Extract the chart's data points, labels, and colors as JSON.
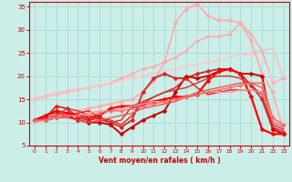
{
  "background_color": "#cceee8",
  "grid_color": "#aadddd",
  "xlim": [
    -0.5,
    23.5
  ],
  "ylim": [
    5,
    36
  ],
  "yticks": [
    5,
    10,
    15,
    20,
    25,
    30,
    35
  ],
  "xticks": [
    0,
    1,
    2,
    3,
    4,
    5,
    6,
    7,
    8,
    9,
    10,
    11,
    12,
    13,
    14,
    15,
    16,
    17,
    18,
    19,
    20,
    21,
    22,
    23
  ],
  "xlabel": "Vent moyen/en rafales ( km/h )",
  "lines": [
    {
      "x": [
        0,
        1,
        2,
        3,
        4,
        5,
        6,
        7,
        8,
        9,
        10,
        11,
        12,
        13,
        14,
        15,
        16,
        17,
        18,
        19,
        20,
        21,
        22,
        23
      ],
      "y": [
        15.2,
        15.8,
        16.3,
        16.8,
        17.2,
        17.5,
        18.0,
        18.5,
        19.0,
        19.5,
        20.0,
        20.5,
        21.0,
        21.5,
        22.0,
        22.5,
        23.0,
        23.5,
        24.0,
        24.5,
        25.0,
        25.5,
        26.0,
        19.5
      ],
      "color": "#ffbbbb",
      "lw": 1.0,
      "marker": null,
      "ms": 0
    },
    {
      "x": [
        0,
        1,
        2,
        3,
        4,
        5,
        6,
        7,
        8,
        9,
        10,
        11,
        12,
        13,
        14,
        15,
        16,
        17,
        18,
        19,
        20,
        21,
        22,
        23
      ],
      "y": [
        15.0,
        15.5,
        16.0,
        16.5,
        17.0,
        17.5,
        18.0,
        18.5,
        19.5,
        20.5,
        21.5,
        22.0,
        23.0,
        24.0,
        25.5,
        27.5,
        28.5,
        28.5,
        29.0,
        31.5,
        29.0,
        25.5,
        18.5,
        19.5
      ],
      "color": "#ffaaaa",
      "lw": 1.2,
      "marker": "D",
      "ms": 2.0
    },
    {
      "x": [
        0,
        1,
        2,
        3,
        4,
        5,
        6,
        7,
        8,
        9,
        10,
        11,
        12,
        13,
        14,
        15,
        16,
        17,
        18,
        19,
        20,
        21,
        22,
        23
      ],
      "y": [
        15.0,
        15.5,
        16.0,
        16.5,
        17.0,
        17.5,
        18.0,
        18.5,
        19.0,
        19.5,
        20.0,
        20.5,
        21.0,
        21.5,
        22.0,
        22.5,
        23.0,
        23.5,
        24.0,
        24.5,
        24.5,
        24.0,
        19.0,
        19.0
      ],
      "color": "#ffcccc",
      "lw": 0.9,
      "marker": null,
      "ms": 0
    },
    {
      "x": [
        0,
        1,
        2,
        3,
        4,
        5,
        6,
        7,
        8,
        9,
        10,
        11,
        12,
        13,
        14,
        15,
        16,
        17,
        18,
        19,
        20,
        21,
        22,
        23
      ],
      "y": [
        10.5,
        11.0,
        11.5,
        12.0,
        12.5,
        13.0,
        13.5,
        14.0,
        14.5,
        15.0,
        16.5,
        19.0,
        23.0,
        31.5,
        34.5,
        35.5,
        33.0,
        32.0,
        32.0,
        31.5,
        27.5,
        20.5,
        16.5,
        8.0
      ],
      "color": "#ffaaaa",
      "lw": 1.2,
      "marker": "D",
      "ms": 2.5
    },
    {
      "x": [
        0,
        1,
        2,
        3,
        4,
        5,
        6,
        7,
        8,
        9,
        10,
        11,
        12,
        13,
        14,
        15,
        16,
        17,
        18,
        19,
        20,
        21,
        22,
        23
      ],
      "y": [
        10.5,
        11.0,
        13.5,
        13.0,
        11.0,
        10.5,
        11.0,
        10.0,
        9.0,
        10.5,
        16.5,
        19.5,
        20.5,
        19.5,
        19.5,
        20.5,
        21.0,
        21.5,
        21.5,
        20.5,
        18.0,
        15.0,
        8.5,
        7.5
      ],
      "color": "#dd2222",
      "lw": 1.3,
      "marker": "D",
      "ms": 2.5
    },
    {
      "x": [
        0,
        1,
        2,
        3,
        4,
        5,
        6,
        7,
        8,
        9,
        10,
        11,
        12,
        13,
        14,
        15,
        16,
        17,
        18,
        19,
        20,
        21,
        22,
        23
      ],
      "y": [
        10.5,
        10.5,
        11.0,
        11.5,
        10.5,
        10.0,
        10.0,
        9.5,
        7.5,
        9.0,
        10.5,
        11.5,
        12.5,
        16.5,
        20.0,
        19.5,
        20.0,
        21.0,
        21.5,
        20.5,
        20.5,
        20.0,
        8.5,
        7.5
      ],
      "color": "#cc0000",
      "lw": 1.4,
      "marker": "D",
      "ms": 2.5
    },
    {
      "x": [
        0,
        1,
        2,
        3,
        4,
        5,
        6,
        7,
        8,
        9,
        10,
        11,
        12,
        13,
        14,
        15,
        16,
        17,
        18,
        19,
        20,
        21,
        22,
        23
      ],
      "y": [
        10.5,
        11.5,
        12.0,
        11.5,
        12.0,
        12.5,
        11.0,
        10.5,
        9.5,
        11.5,
        14.0,
        15.5,
        16.5,
        17.5,
        19.5,
        17.5,
        16.0,
        16.5,
        17.0,
        17.0,
        17.0,
        16.5,
        9.0,
        8.0
      ],
      "color": "#ee2222",
      "lw": 1.1,
      "marker": null,
      "ms": 0
    },
    {
      "x": [
        0,
        1,
        2,
        3,
        4,
        5,
        6,
        7,
        8,
        9,
        10,
        11,
        12,
        13,
        14,
        15,
        16,
        17,
        18,
        19,
        20,
        21,
        22,
        23
      ],
      "y": [
        10.5,
        11.5,
        12.5,
        12.0,
        11.5,
        11.0,
        11.5,
        13.0,
        13.5,
        13.5,
        14.0,
        14.5,
        15.0,
        15.5,
        15.5,
        16.0,
        19.0,
        21.0,
        21.5,
        20.5,
        15.5,
        8.5,
        7.5,
        7.5
      ],
      "color": "#ff0000",
      "lw": 1.6,
      "marker": "D",
      "ms": 2.5
    },
    {
      "x": [
        0,
        1,
        2,
        3,
        4,
        5,
        6,
        7,
        8,
        9,
        10,
        11,
        12,
        13,
        14,
        15,
        16,
        17,
        18,
        19,
        20,
        21,
        22,
        23
      ],
      "y": [
        10.5,
        11.0,
        11.5,
        13.0,
        12.5,
        11.5,
        10.5,
        10.0,
        10.5,
        13.5,
        14.5,
        15.5,
        16.5,
        17.0,
        17.5,
        18.5,
        19.5,
        20.0,
        20.0,
        19.5,
        18.0,
        16.0,
        9.5,
        8.5
      ],
      "color": "#cc3333",
      "lw": 1.0,
      "marker": null,
      "ms": 0
    },
    {
      "x": [
        0,
        1,
        2,
        3,
        4,
        5,
        6,
        7,
        8,
        9,
        10,
        11,
        12,
        13,
        14,
        15,
        16,
        17,
        18,
        19,
        20,
        21,
        22,
        23
      ],
      "y": [
        10.2,
        10.5,
        11.0,
        11.0,
        10.5,
        10.0,
        10.5,
        11.0,
        11.5,
        12.0,
        13.0,
        13.5,
        14.0,
        14.5,
        15.5,
        16.5,
        17.0,
        17.5,
        18.0,
        18.5,
        18.5,
        17.5,
        10.0,
        9.0
      ],
      "color": "#ee5555",
      "lw": 1.0,
      "marker": null,
      "ms": 0
    },
    {
      "x": [
        0,
        1,
        2,
        3,
        4,
        5,
        6,
        7,
        8,
        9,
        10,
        11,
        12,
        13,
        14,
        15,
        16,
        17,
        18,
        19,
        20,
        21,
        22,
        23
      ],
      "y": [
        10.0,
        10.5,
        11.0,
        11.5,
        11.5,
        12.0,
        12.5,
        12.5,
        13.0,
        13.5,
        14.0,
        14.5,
        14.5,
        15.0,
        15.5,
        16.0,
        16.5,
        16.5,
        16.5,
        17.0,
        17.0,
        16.5,
        10.5,
        9.5
      ],
      "color": "#ff9999",
      "lw": 1.0,
      "marker": null,
      "ms": 0
    },
    {
      "x": [
        0,
        1,
        2,
        3,
        4,
        5,
        6,
        7,
        8,
        9,
        10,
        11,
        12,
        13,
        14,
        15,
        16,
        17,
        18,
        19,
        20,
        21,
        22,
        23
      ],
      "y": [
        10.5,
        10.5,
        11.0,
        11.5,
        11.5,
        11.5,
        12.0,
        12.5,
        12.5,
        13.0,
        13.5,
        14.0,
        14.5,
        15.0,
        15.5,
        16.0,
        16.5,
        17.0,
        17.5,
        18.0,
        18.5,
        18.5,
        11.0,
        9.5
      ],
      "color": "#ff6666",
      "lw": 1.0,
      "marker": "D",
      "ms": 2.0
    }
  ]
}
